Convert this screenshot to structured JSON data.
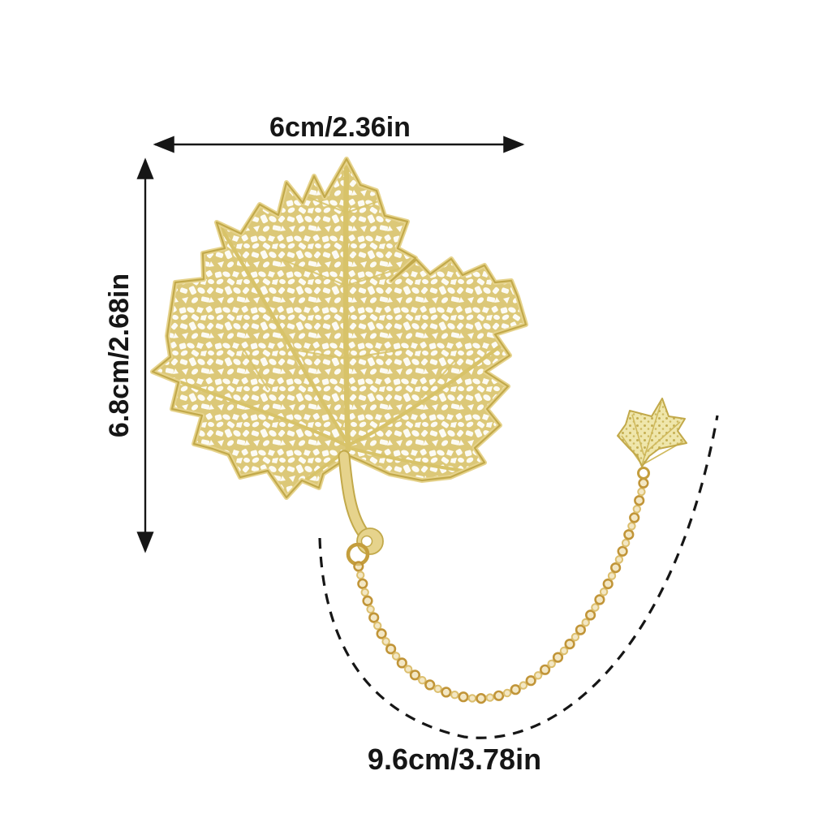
{
  "diagram": {
    "subject": "gold hollow maple leaf bookmark with link chain and ivy leaf charm",
    "annotations": {
      "width_label": "6cm/2.36in",
      "height_label": "6.8cm/2.68in",
      "chain_length_label": "9.6cm/3.78in"
    },
    "colors": {
      "background": "#ffffff",
      "annotation_ink": "#161616",
      "leaf_gold_base": "#dcc878",
      "leaf_gold_light": "#e6d38c",
      "leaf_gold_dark": "#c2a94a",
      "vein_gold": "#d8c369",
      "chain_gold": "#c19538",
      "chain_gold_light": "#dcbf6e"
    }
  }
}
